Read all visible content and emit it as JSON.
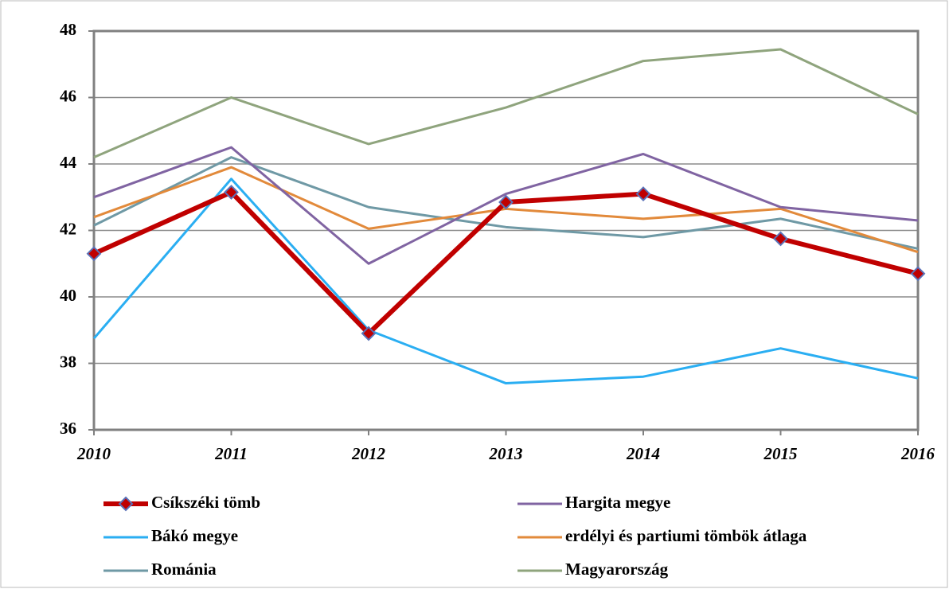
{
  "chart_data": {
    "type": "line",
    "categories": [
      "2010",
      "2011",
      "2012",
      "2013",
      "2014",
      "2015",
      "2016"
    ],
    "ylim": [
      36,
      48
    ],
    "yticks": [
      36,
      38,
      40,
      42,
      44,
      46,
      48
    ],
    "grid": true,
    "series": [
      {
        "name": "Csíkszéki tömb",
        "color": "#c00000",
        "marker": "diamond",
        "marker_color": "#5a72b8",
        "values": [
          41.3,
          43.15,
          38.9,
          42.85,
          43.1,
          41.75,
          40.7
        ]
      },
      {
        "name": "Hargita megye",
        "color": "#8064a2",
        "values": [
          43.0,
          44.5,
          41.0,
          43.1,
          44.3,
          42.7,
          42.3
        ]
      },
      {
        "name": "Bákó megye",
        "color": "#2aaef2",
        "values": [
          38.75,
          43.55,
          39.0,
          37.4,
          37.6,
          38.45,
          37.55
        ]
      },
      {
        "name": "erdélyi és partiumi tömbök átlaga",
        "color": "#e28a3b",
        "values": [
          42.4,
          43.9,
          42.05,
          42.65,
          42.35,
          42.65,
          41.35
        ]
      },
      {
        "name": "Románia",
        "color": "#6f99a5",
        "values": [
          42.15,
          44.2,
          42.7,
          42.1,
          41.8,
          42.35,
          41.45
        ]
      },
      {
        "name": "Magyarország",
        "color": "#8fa47d",
        "values": [
          44.2,
          46.0,
          44.6,
          45.7,
          47.1,
          47.45,
          45.5
        ]
      }
    ]
  }
}
